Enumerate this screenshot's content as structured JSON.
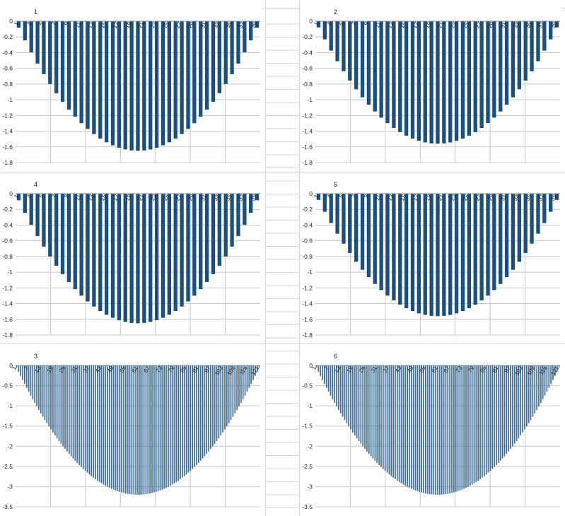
{
  "spreadsheet": {
    "cell_reference": "A1",
    "colors": {
      "bar_dark": "#1b4f7e",
      "bar_light": "#3f6d9c",
      "gridline": "#c8c8c8",
      "sheet_gridline": "#d4d4d4",
      "axis": "#888888",
      "text": "#222222"
    }
  },
  "chart_data": [
    {
      "id": "c1",
      "type": "bar",
      "title": "1",
      "series_n": 39,
      "min_value": -1.65,
      "ylim": [
        -1.8,
        0
      ],
      "yticks": [
        0,
        -0.2,
        -0.4,
        -0.6,
        -0.8,
        -1,
        -1.2,
        -1.4,
        -1.6,
        -1.8
      ],
      "ytick_labels": [
        "0",
        "-0.2",
        "-0.4",
        "-0.6",
        "-0.8",
        "-1",
        "-1.2",
        "-1.4",
        "-1.6",
        "-1.8"
      ],
      "xtick_labels": [
        "1",
        "3",
        "5",
        "7",
        "9",
        "11",
        "13",
        "15",
        "17",
        "19",
        "21",
        "23",
        "25",
        "27",
        "29",
        "31",
        "33",
        "35",
        "37",
        "39"
      ],
      "bar_color": "#1b4f7e"
    },
    {
      "id": "c2",
      "type": "bar",
      "title": "2",
      "series_n": 39,
      "min_value": -1.56,
      "ylim": [
        -1.8,
        0
      ],
      "yticks": [
        0,
        -0.2,
        -0.4,
        -0.6,
        -0.8,
        -1,
        -1.2,
        -1.4,
        -1.6,
        -1.8
      ],
      "ytick_labels": [
        "0",
        "-0.2",
        "-0.4",
        "-0.6",
        "-0.8",
        "-1",
        "-1.2",
        "-1.4",
        "-1.6",
        "-1.8"
      ],
      "xtick_labels": [
        "1",
        "3",
        "5",
        "7",
        "9",
        "11",
        "13",
        "15",
        "17",
        "19",
        "21",
        "23",
        "25",
        "27",
        "29",
        "31",
        "33",
        "35",
        "37",
        "39"
      ],
      "bar_color": "#1b4f7e"
    },
    {
      "id": "c4",
      "type": "bar",
      "title": "4",
      "series_n": 39,
      "min_value": -1.65,
      "ylim": [
        -1.8,
        0
      ],
      "yticks": [
        0,
        -0.2,
        -0.4,
        -0.6,
        -0.8,
        -1,
        -1.2,
        -1.4,
        -1.6,
        -1.8
      ],
      "ytick_labels": [
        "0",
        "-0.2",
        "-0.4",
        "-0.6",
        "-0.8",
        "-1",
        "-1.2",
        "-1.4",
        "-1.6",
        "-1.8"
      ],
      "xtick_labels": [
        "1",
        "3",
        "5",
        "7",
        "9",
        "11",
        "13",
        "15",
        "17",
        "19",
        "21",
        "23",
        "25",
        "27",
        "29",
        "31",
        "33",
        "35",
        "37",
        "39"
      ],
      "bar_color": "#1b4f7e"
    },
    {
      "id": "c5",
      "type": "bar",
      "title": "5",
      "series_n": 39,
      "min_value": -1.56,
      "ylim": [
        -1.8,
        0
      ],
      "yticks": [
        0,
        -0.2,
        -0.4,
        -0.6,
        -0.8,
        -1,
        -1.2,
        -1.4,
        -1.6,
        -1.8
      ],
      "ytick_labels": [
        "0",
        "-0.2",
        "-0.4",
        "-0.6",
        "-0.8",
        "-1",
        "-1.2",
        "-1.4",
        "-1.6",
        "-1.8"
      ],
      "xtick_labels": [
        "1",
        "3",
        "5",
        "7",
        "9",
        "11",
        "13",
        "15",
        "17",
        "19",
        "21",
        "23",
        "25",
        "27",
        "29",
        "31",
        "33",
        "35",
        "37",
        "39"
      ],
      "bar_color": "#1b4f7e"
    },
    {
      "id": "c3",
      "type": "bar",
      "title": "3",
      "series_n": 121,
      "min_value": -3.2,
      "ylim": [
        -3.5,
        0
      ],
      "yticks": [
        0,
        -0.5,
        -1,
        -1.5,
        -2,
        -2.5,
        -3,
        -3.5
      ],
      "ytick_labels": [
        "0",
        "-0.5",
        "-1",
        "-1.5",
        "-2",
        "-2.5",
        "-3",
        "-3.5"
      ],
      "xtick_labels": [
        "1",
        "7",
        "13",
        "19",
        "25",
        "31",
        "37",
        "43",
        "49",
        "55",
        "61",
        "67",
        "73",
        "79",
        "85",
        "91",
        "97",
        "103",
        "109",
        "115",
        "121"
      ],
      "bar_color": "#3f6d9c"
    },
    {
      "id": "c6",
      "type": "bar",
      "title": "6",
      "series_n": 121,
      "min_value": -3.2,
      "ylim": [
        -3.5,
        0
      ],
      "yticks": [
        0,
        -0.5,
        -1,
        -1.5,
        -2,
        -2.5,
        -3,
        -3.5
      ],
      "ytick_labels": [
        "0",
        "-0.5",
        "-1",
        "-1.5",
        "-2",
        "-2.5",
        "-3",
        "-3.5"
      ],
      "xtick_labels": [
        "1",
        "7",
        "13",
        "19",
        "25",
        "31",
        "37",
        "43",
        "49",
        "55",
        "61",
        "67",
        "73",
        "79",
        "85",
        "91",
        "97",
        "103",
        "109",
        "115",
        "121"
      ],
      "bar_color": "#3f6d9c"
    }
  ]
}
